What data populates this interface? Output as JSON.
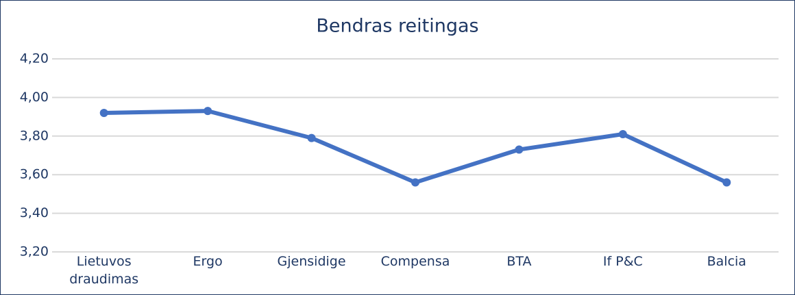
{
  "chart_data": {
    "type": "line",
    "title": "Bendras reitingas",
    "categories": [
      "Lietuvos draudimas",
      "Ergo",
      "Gjensidige",
      "Compensa",
      "BTA",
      "If P&C",
      "Balcia"
    ],
    "series": [
      {
        "name": "Bendras reitingas",
        "color": "#4472c4",
        "values": [
          3.92,
          3.93,
          3.79,
          3.56,
          3.73,
          3.81,
          3.56
        ]
      }
    ],
    "ylim": [
      3.2,
      4.2
    ],
    "yticks": [
      {
        "value": 3.2,
        "label": "3,20"
      },
      {
        "value": 3.4,
        "label": "3,40"
      },
      {
        "value": 3.6,
        "label": "3,60"
      },
      {
        "value": 3.8,
        "label": "3,80"
      },
      {
        "value": 4.0,
        "label": "4,00"
      },
      {
        "value": 4.2,
        "label": "4,20"
      }
    ],
    "grid": true
  }
}
